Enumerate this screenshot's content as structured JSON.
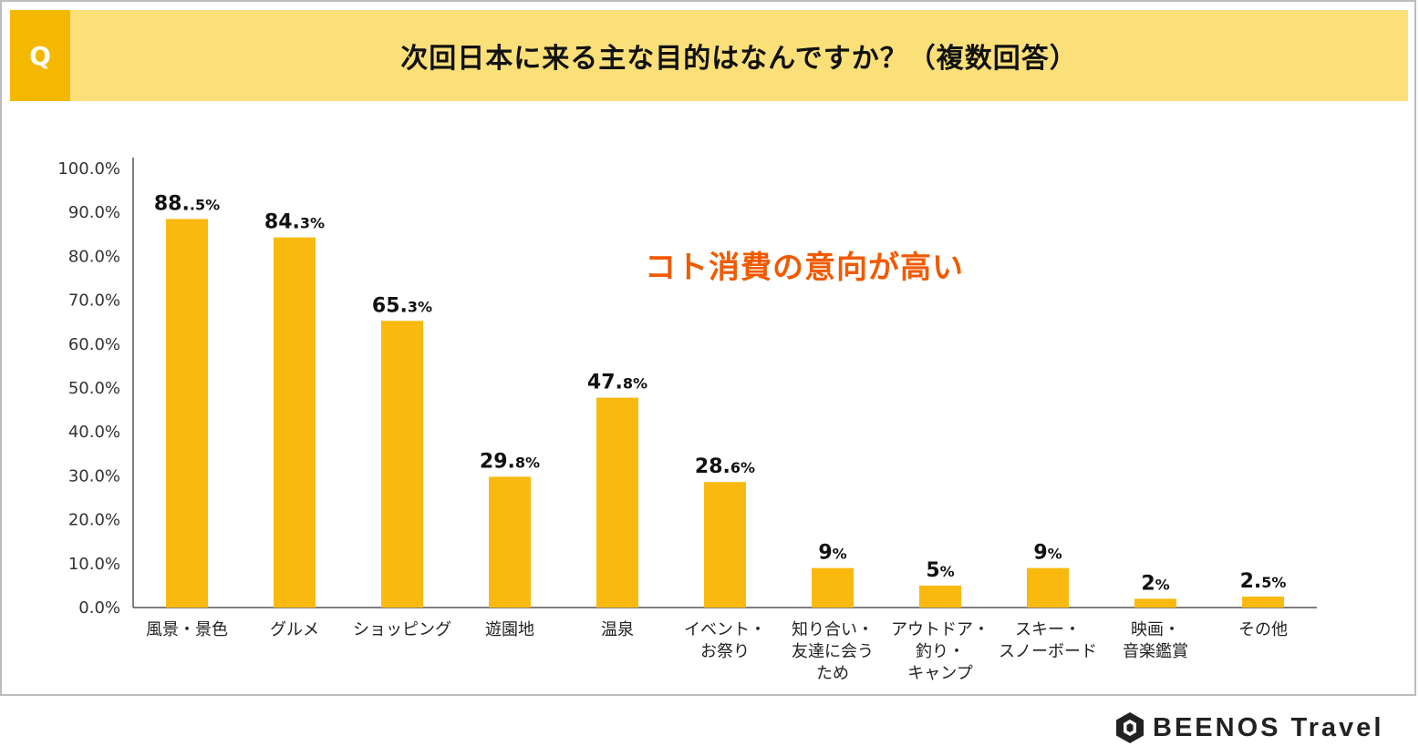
{
  "header": {
    "badge": "Q",
    "title": "次回日本に来る主な目的はなんですか？（複数回答）"
  },
  "callout": "コト消費の意向が高い",
  "brand": {
    "name": "BEENOS Travel",
    "logo_icon": "hexagon-logo-icon"
  },
  "colors": {
    "bar": "#f9b90f",
    "banner": "#fbe07a",
    "badge": "#f5b800",
    "callout": "#f05a00"
  },
  "chart_data": {
    "type": "bar",
    "title": "次回日本に来る主な目的はなんですか？（複数回答）",
    "ylim": [
      0,
      100
    ],
    "yticks": [
      "0.0%",
      "10.0%",
      "20.0%",
      "30.0%",
      "40.0%",
      "50.0%",
      "60.0%",
      "70.0%",
      "80.0%",
      "90.0%",
      "100.0%"
    ],
    "categories": [
      [
        "風景・景色"
      ],
      [
        "グルメ"
      ],
      [
        "ショッピング"
      ],
      [
        "遊園地"
      ],
      [
        "温泉"
      ],
      [
        "イベント・",
        "お祭り"
      ],
      [
        "知り合い・",
        "友達に会う",
        "ため"
      ],
      [
        "アウトドア・",
        "釣り・",
        "キャンプ"
      ],
      [
        "スキー・",
        "スノーボード"
      ],
      [
        "映画・",
        "音楽鑑賞"
      ],
      [
        "その他"
      ]
    ],
    "values": [
      88.5,
      84.3,
      65.3,
      29.8,
      47.8,
      28.6,
      9,
      5,
      9,
      2,
      2.5
    ],
    "value_labels": [
      {
        "main": "88.",
        "small": ".5%"
      },
      {
        "main": "84.",
        "small": "3%"
      },
      {
        "main": "65.",
        "small": "3%"
      },
      {
        "main": "29.",
        "small": "8%"
      },
      {
        "main": "47.",
        "small": "8%"
      },
      {
        "main": "28.",
        "small": "6%"
      },
      {
        "main": "9",
        "small": "%"
      },
      {
        "main": "5",
        "small": "%"
      },
      {
        "main": "9",
        "small": "%"
      },
      {
        "main": "2",
        "small": "%"
      },
      {
        "main": "2.",
        "small": "5%"
      }
    ]
  }
}
